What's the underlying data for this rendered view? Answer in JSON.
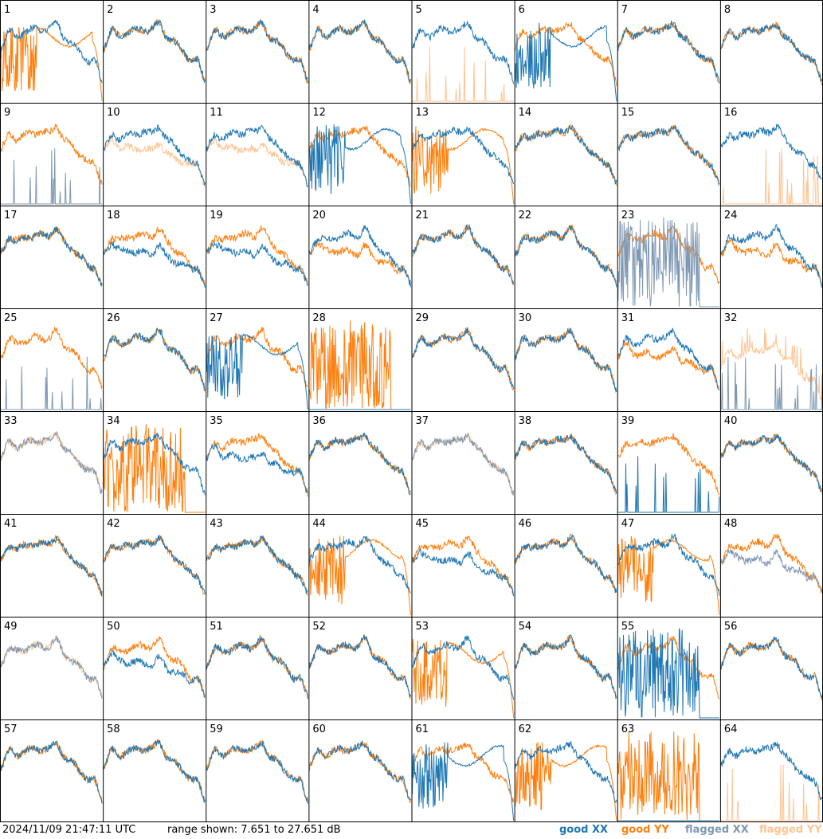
{
  "footer": {
    "timestamp": "2024/11/09 21:47:11 UTC",
    "range": "range shown: 7.651 to 27.651 dB",
    "legend_good_xx": "good XX",
    "legend_good_yy": "good YY",
    "legend_flagged_xx": "flagged XX",
    "legend_flagged_yy": "flagged YY"
  },
  "colors": {
    "good_xx": "#1f77b4",
    "good_yy": "#ff7f0e",
    "flagged_xx": "#7f99b3",
    "flagged_yy": "#ffc493",
    "grid": "#000000"
  },
  "chart_data": {
    "type": "line",
    "layout": "8x8 small multiples",
    "ylim": [
      7.651,
      27.651
    ],
    "panels": [
      {
        "id": 1,
        "xx": "good",
        "xx_shape": "normal",
        "yy": "good",
        "yy_shape": "dropout"
      },
      {
        "id": 2,
        "xx": "good",
        "xx_shape": "normal",
        "yy": "good",
        "yy_shape": "normal"
      },
      {
        "id": 3,
        "xx": "good",
        "xx_shape": "normal",
        "yy": "good",
        "yy_shape": "normal"
      },
      {
        "id": 4,
        "xx": "good",
        "xx_shape": "normal",
        "yy": "good",
        "yy_shape": "normal"
      },
      {
        "id": 5,
        "xx": "good",
        "xx_shape": "normal",
        "yy": "flagged",
        "yy_shape": "spikes_low"
      },
      {
        "id": 6,
        "xx": "good",
        "xx_shape": "dropout",
        "yy": "good",
        "yy_shape": "normal"
      },
      {
        "id": 7,
        "xx": "good",
        "xx_shape": "normal",
        "yy": "good",
        "yy_shape": "normal"
      },
      {
        "id": 8,
        "xx": "good",
        "xx_shape": "normal",
        "yy": "good",
        "yy_shape": "normal"
      },
      {
        "id": 9,
        "xx": "flagged",
        "xx_shape": "spikes_low",
        "yy": "good",
        "yy_shape": "normal"
      },
      {
        "id": 10,
        "xx": "good",
        "xx_shape": "normal",
        "yy": "flagged",
        "yy_shape": "low"
      },
      {
        "id": 11,
        "xx": "good",
        "xx_shape": "normal",
        "yy": "flagged",
        "yy_shape": "low"
      },
      {
        "id": 12,
        "xx": "good",
        "xx_shape": "dropout",
        "yy": "good",
        "yy_shape": "normal"
      },
      {
        "id": 13,
        "xx": "good",
        "xx_shape": "normal",
        "yy": "good",
        "yy_shape": "dropout"
      },
      {
        "id": 14,
        "xx": "good",
        "xx_shape": "normal",
        "yy": "good",
        "yy_shape": "normal"
      },
      {
        "id": 15,
        "xx": "good",
        "xx_shape": "normal",
        "yy": "good",
        "yy_shape": "normal"
      },
      {
        "id": 16,
        "xx": "good",
        "xx_shape": "normal",
        "yy": "flagged",
        "yy_shape": "spikes_low"
      },
      {
        "id": 17,
        "xx": "good",
        "xx_shape": "normal",
        "yy": "good",
        "yy_shape": "normal"
      },
      {
        "id": 18,
        "xx": "good",
        "xx_shape": "low",
        "yy": "good",
        "yy_shape": "normal"
      },
      {
        "id": 19,
        "xx": "good",
        "xx_shape": "low",
        "yy": "good",
        "yy_shape": "normal"
      },
      {
        "id": 20,
        "xx": "good",
        "xx_shape": "normal",
        "yy": "good",
        "yy_shape": "low"
      },
      {
        "id": 21,
        "xx": "good",
        "xx_shape": "normal",
        "yy": "good",
        "yy_shape": "normal"
      },
      {
        "id": 22,
        "xx": "good",
        "xx_shape": "normal",
        "yy": "good",
        "yy_shape": "normal"
      },
      {
        "id": 23,
        "xx": "flagged",
        "xx_shape": "noise",
        "yy": "good",
        "yy_shape": "normal"
      },
      {
        "id": 24,
        "xx": "good",
        "xx_shape": "normal",
        "yy": "good",
        "yy_shape": "low"
      },
      {
        "id": 25,
        "xx": "flagged",
        "xx_shape": "spikes_low",
        "yy": "good",
        "yy_shape": "normal"
      },
      {
        "id": 26,
        "xx": "good",
        "xx_shape": "normal",
        "yy": "good",
        "yy_shape": "normal"
      },
      {
        "id": 27,
        "xx": "good",
        "xx_shape": "dropout",
        "yy": "good",
        "yy_shape": "normal"
      },
      {
        "id": 28,
        "xx": "good",
        "xx_shape": "flat_bottom",
        "yy": "good",
        "yy_shape": "noise"
      },
      {
        "id": 29,
        "xx": "good",
        "xx_shape": "normal",
        "yy": "good",
        "yy_shape": "normal"
      },
      {
        "id": 30,
        "xx": "good",
        "xx_shape": "normal",
        "yy": "good",
        "yy_shape": "normal"
      },
      {
        "id": 31,
        "xx": "good",
        "xx_shape": "normal",
        "yy": "good",
        "yy_shape": "low"
      },
      {
        "id": 32,
        "xx": "flagged",
        "xx_shape": "spikes_low",
        "yy": "flagged",
        "yy_shape": "spiky"
      },
      {
        "id": 33,
        "xx": "flagged",
        "xx_shape": "normal",
        "yy": "flagged",
        "yy_shape": "normal"
      },
      {
        "id": 34,
        "xx": "good",
        "xx_shape": "normal",
        "yy": "good",
        "yy_shape": "noise"
      },
      {
        "id": 35,
        "xx": "good",
        "xx_shape": "low",
        "yy": "good",
        "yy_shape": "normal"
      },
      {
        "id": 36,
        "xx": "good",
        "xx_shape": "normal",
        "yy": "good",
        "yy_shape": "normal"
      },
      {
        "id": 37,
        "xx": "flagged",
        "xx_shape": "normal",
        "yy": "flagged",
        "yy_shape": "normal"
      },
      {
        "id": 38,
        "xx": "good",
        "xx_shape": "normal",
        "yy": "good",
        "yy_shape": "normal"
      },
      {
        "id": 39,
        "xx": "good",
        "xx_shape": "spikes_low",
        "yy": "good",
        "yy_shape": "normal"
      },
      {
        "id": 40,
        "xx": "good",
        "xx_shape": "normal",
        "yy": "good",
        "yy_shape": "normal"
      },
      {
        "id": 41,
        "xx": "good",
        "xx_shape": "normal",
        "yy": "good",
        "yy_shape": "normal"
      },
      {
        "id": 42,
        "xx": "good",
        "xx_shape": "normal",
        "yy": "good",
        "yy_shape": "normal"
      },
      {
        "id": 43,
        "xx": "good",
        "xx_shape": "normal",
        "yy": "good",
        "yy_shape": "normal"
      },
      {
        "id": 44,
        "xx": "good",
        "xx_shape": "normal",
        "yy": "good",
        "yy_shape": "dropout"
      },
      {
        "id": 45,
        "xx": "good",
        "xx_shape": "low",
        "yy": "good",
        "yy_shape": "normal"
      },
      {
        "id": 46,
        "xx": "good",
        "xx_shape": "normal",
        "yy": "good",
        "yy_shape": "normal"
      },
      {
        "id": 47,
        "xx": "good",
        "xx_shape": "normal",
        "yy": "good",
        "yy_shape": "dropout"
      },
      {
        "id": 48,
        "xx": "flagged",
        "xx_shape": "low",
        "yy": "good",
        "yy_shape": "normal"
      },
      {
        "id": 49,
        "xx": "flagged",
        "xx_shape": "normal",
        "yy": "flagged",
        "yy_shape": "normal"
      },
      {
        "id": 50,
        "xx": "good",
        "xx_shape": "low",
        "yy": "good",
        "yy_shape": "normal"
      },
      {
        "id": 51,
        "xx": "good",
        "xx_shape": "normal",
        "yy": "good",
        "yy_shape": "normal"
      },
      {
        "id": 52,
        "xx": "good",
        "xx_shape": "normal",
        "yy": "good",
        "yy_shape": "normal"
      },
      {
        "id": 53,
        "xx": "good",
        "xx_shape": "normal",
        "yy": "good",
        "yy_shape": "dropout"
      },
      {
        "id": 54,
        "xx": "good",
        "xx_shape": "normal",
        "yy": "good",
        "yy_shape": "normal"
      },
      {
        "id": 55,
        "xx": "good",
        "xx_shape": "noise",
        "yy": "good",
        "yy_shape": "normal"
      },
      {
        "id": 56,
        "xx": "good",
        "xx_shape": "normal",
        "yy": "good",
        "yy_shape": "normal"
      },
      {
        "id": 57,
        "xx": "good",
        "xx_shape": "normal",
        "yy": "good",
        "yy_shape": "normal"
      },
      {
        "id": 58,
        "xx": "good",
        "xx_shape": "normal",
        "yy": "good",
        "yy_shape": "normal"
      },
      {
        "id": 59,
        "xx": "good",
        "xx_shape": "normal",
        "yy": "good",
        "yy_shape": "normal"
      },
      {
        "id": 60,
        "xx": "good",
        "xx_shape": "normal",
        "yy": "good",
        "yy_shape": "normal"
      },
      {
        "id": 61,
        "xx": "good",
        "xx_shape": "dropout",
        "yy": "good",
        "yy_shape": "normal"
      },
      {
        "id": 62,
        "xx": "good",
        "xx_shape": "normal",
        "yy": "good",
        "yy_shape": "dropout"
      },
      {
        "id": 63,
        "xx": "good",
        "xx_shape": "flat_bottom",
        "yy": "good",
        "yy_shape": "noise"
      },
      {
        "id": 64,
        "xx": "good",
        "xx_shape": "normal",
        "yy": "flagged",
        "yy_shape": "spikes_low"
      }
    ]
  }
}
